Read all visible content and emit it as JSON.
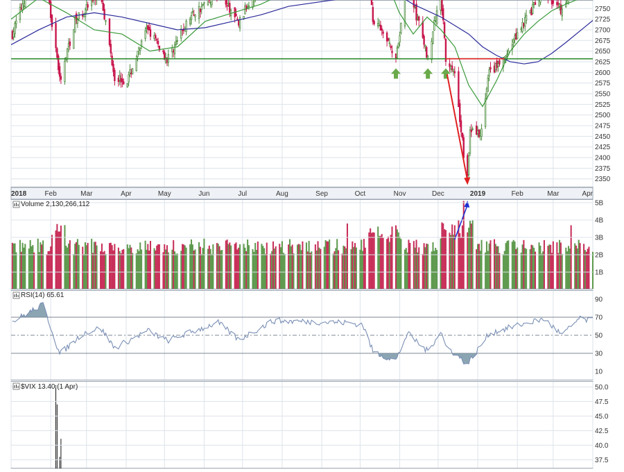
{
  "chart_data": {
    "type": "candlestick",
    "x_axis": {
      "ticks": [
        "2018",
        "Feb",
        "Mar",
        "Apr",
        "May",
        "Jun",
        "Jul",
        "Aug",
        "Sep",
        "Oct",
        "Nov",
        "Dec",
        "2019",
        "Feb",
        "Mar",
        "Apr"
      ],
      "range": [
        "2018-01-01",
        "2019-04-01"
      ]
    },
    "price_panel": {
      "ylim": [
        2330,
        2770
      ],
      "yticks": [
        2350,
        2375,
        2400,
        2425,
        2450,
        2475,
        2500,
        2525,
        2550,
        2575,
        2600,
        2625,
        2650,
        2675,
        2700,
        2725,
        2750
      ],
      "support_level": 2632,
      "down_arrow_x": [
        "2018-10-29",
        "2018-11-23",
        "2018-12-07"
      ],
      "series": [
        {
          "type": "line",
          "values": [
            [
              0,
              2725
            ],
            [
              40,
              2775
            ],
            [
              80,
              2740
            ],
            [
              120,
              2700
            ],
            [
              160,
              2690
            ],
            [
              200,
              2650
            ],
            [
              240,
              2660
            ],
            [
              280,
              2720
            ],
            [
              320,
              2740
            ],
            [
              360,
              2760
            ],
            [
              400,
              2790
            ],
            [
              550,
              2780
            ],
            [
              560,
              2740
            ],
            [
              580,
              2690
            ],
            [
              600,
              2730
            ],
            [
              620,
              2700
            ],
            [
              640,
              2660
            ],
            [
              660,
              2570
            ],
            [
              680,
              2520
            ],
            [
              700,
              2580
            ],
            [
              720,
              2650
            ],
            [
              740,
              2690
            ],
            [
              760,
              2720
            ],
            [
              780,
              2745
            ],
            [
              800,
              2760
            ],
            [
              830,
              2780
            ]
          ]
        },
        {
          "type": "line",
          "values": [
            [
              0,
              2665
            ],
            [
              40,
              2700
            ],
            [
              80,
              2730
            ],
            [
              120,
              2740
            ],
            [
              160,
              2730
            ],
            [
              200,
              2715
            ],
            [
              240,
              2700
            ],
            [
              280,
              2705
            ],
            [
              320,
              2720
            ],
            [
              360,
              2735
            ],
            [
              400,
              2755
            ],
            [
              550,
              2790
            ],
            [
              580,
              2760
            ],
            [
              620,
              2730
            ],
            [
              660,
              2690
            ],
            [
              680,
              2660
            ],
            [
              700,
              2640
            ],
            [
              720,
              2625
            ],
            [
              740,
              2620
            ],
            [
              760,
              2625
            ],
            [
              780,
              2645
            ],
            [
              800,
              2670
            ],
            [
              830,
              2710
            ],
            [
              860,
              2750
            ]
          ]
        }
      ],
      "annotations": [
        {
          "type": "arrow",
          "from": "2018-12-08",
          "to": "2018-12-24"
        },
        {
          "type": "arrow",
          "from": "2018-12-14",
          "to": "2018-12-24"
        }
      ]
    },
    "volume_panel": {
      "title": "Volume 2,130,266,112",
      "ylim": [
        0,
        5200000000
      ],
      "yticks": [
        "1B",
        "2B",
        "3B",
        "4B",
        "5B"
      ],
      "ytick_values": [
        1000000000,
        2000000000,
        3000000000,
        4000000000,
        5000000000
      ]
    },
    "rsi_panel": {
      "title": "RSI(14) 65.61",
      "ylim": [
        0,
        100
      ],
      "yticks": [
        10,
        30,
        50,
        70,
        90
      ],
      "overbought": 70,
      "oversold": 30,
      "midline": 50
    },
    "vix_panel": {
      "title": "$VIX 13.40 (1 Apr)",
      "ylim": [
        36,
        51
      ],
      "yticks": [
        "37.5",
        "40.0",
        "42.5",
        "45.0",
        "47.5",
        "50.0"
      ],
      "ytick_values": [
        37.5,
        40.0,
        42.5,
        45.0,
        47.5,
        50.0
      ]
    },
    "colors": {
      "up": "#4b8b3b",
      "down": "#c8174d",
      "up_volume": "#5f9a4f",
      "down_volume": "#c8305a",
      "support": "#2e8b2e",
      "ma_short": "#3a9a3a",
      "ma_long": "#2a2a9a",
      "rsi": "#7a8fb5",
      "rsi_fill": "#6f8fa0",
      "arrow_red": "#e02020",
      "arrow_blue": "#1f2fd0",
      "arrow_green": "#6aaa4a",
      "grid": "#dde3ea",
      "axis_text": "#333333"
    }
  }
}
